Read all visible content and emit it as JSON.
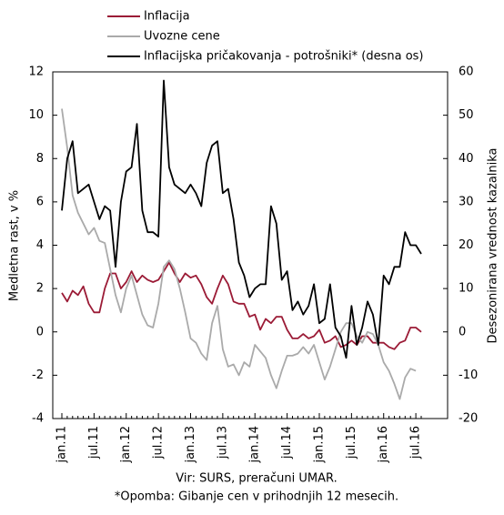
{
  "chart_data": {
    "type": "line",
    "ylabel": "Medletna rast, v %",
    "y2label": "Desezonirana vrednost kazalnika",
    "source": "Vir: SURS, preračuni UMAR.",
    "note": "*Opomba: Gibanje cen v prihodnjih 12 mesecih.",
    "categories": [
      "jan.11",
      null,
      null,
      null,
      null,
      null,
      "jul.11",
      null,
      null,
      null,
      null,
      null,
      "jan.12",
      null,
      null,
      null,
      null,
      null,
      "jul.12",
      null,
      null,
      null,
      null,
      null,
      "jan.13",
      null,
      null,
      null,
      null,
      null,
      "jul.13",
      null,
      null,
      null,
      null,
      null,
      "jan.14",
      null,
      null,
      null,
      null,
      null,
      "jul.14",
      null,
      null,
      null,
      null,
      null,
      "jan.15",
      null,
      null,
      null,
      null,
      null,
      "jul.15",
      null,
      null,
      null,
      null,
      null,
      "jan.16",
      null,
      null,
      null,
      null,
      null,
      "jul.16",
      null
    ],
    "ylim": [
      -4,
      12
    ],
    "yticks": [
      -4,
      -2,
      0,
      2,
      4,
      6,
      8,
      10,
      12
    ],
    "y2lim": [
      -20,
      60
    ],
    "y2ticks": [
      -20,
      -10,
      0,
      10,
      20,
      30,
      40,
      50,
      60
    ],
    "series": [
      {
        "name": "Inflacija",
        "color": "#9b1b36",
        "values": [
          1.8,
          1.4,
          1.9,
          1.7,
          2.1,
          1.3,
          0.9,
          0.9,
          2.0,
          2.7,
          2.7,
          2.0,
          2.3,
          2.8,
          2.3,
          2.6,
          2.4,
          2.3,
          2.4,
          2.8,
          3.2,
          2.7,
          2.3,
          2.7,
          2.5,
          2.6,
          2.2,
          1.6,
          1.3,
          2.0,
          2.6,
          2.2,
          1.4,
          1.3,
          1.3,
          0.7,
          0.8,
          0.1,
          0.6,
          0.4,
          0.7,
          0.7,
          0.1,
          -0.3,
          -0.3,
          -0.1,
          -0.3,
          -0.2,
          0.1,
          -0.5,
          -0.4,
          -0.2,
          -0.7,
          -0.6,
          -0.4,
          -0.6,
          -0.2,
          -0.2,
          -0.5,
          -0.5,
          -0.5,
          -0.7,
          -0.8,
          -0.5,
          -0.4,
          0.2,
          0.2,
          0.0
        ]
      },
      {
        "name": "Uvozne cene",
        "color": "#aaaaaa",
        "values": [
          10.3,
          8.5,
          6.3,
          5.5,
          5.0,
          4.5,
          4.8,
          4.2,
          4.1,
          2.9,
          1.7,
          0.9,
          2.0,
          2.6,
          1.7,
          0.8,
          0.3,
          0.2,
          1.3,
          3.0,
          3.3,
          2.9,
          2.0,
          0.9,
          -0.3,
          -0.5,
          -1.0,
          -1.3,
          0.4,
          1.2,
          -0.8,
          -1.6,
          -1.5,
          -2.0,
          -1.4,
          -1.6,
          -0.6,
          -0.9,
          -1.2,
          -2.0,
          -2.6,
          -1.8,
          -1.1,
          -1.1,
          -1.0,
          -0.7,
          -1.0,
          -0.6,
          -1.4,
          -2.2,
          -1.6,
          -0.8,
          0.0,
          0.4,
          0.4,
          -0.2,
          -0.5,
          0.0,
          -0.1,
          -0.6,
          -1.4,
          -1.8,
          -2.4,
          -3.1,
          -2.1,
          -1.7,
          -1.8,
          null
        ]
      },
      {
        "name": "Inflacijska pričakovanja - potrošniki* (desna os)",
        "color": "#000000",
        "axis": "y2",
        "values": [
          28,
          40,
          44,
          32,
          33,
          34,
          30,
          26,
          29,
          28,
          15,
          30,
          37,
          38,
          48,
          28,
          23,
          23,
          22,
          58,
          38,
          34,
          33,
          32,
          34,
          32,
          29,
          39,
          43,
          44,
          32,
          33,
          26,
          16,
          13,
          8,
          10,
          11,
          11,
          29,
          25,
          12,
          14,
          5,
          7,
          4,
          6,
          11,
          2,
          3,
          11,
          1,
          -1,
          -6,
          6,
          -3,
          1,
          7,
          4,
          -3,
          13,
          11,
          15,
          15,
          23,
          20,
          20,
          18
        ]
      }
    ]
  }
}
